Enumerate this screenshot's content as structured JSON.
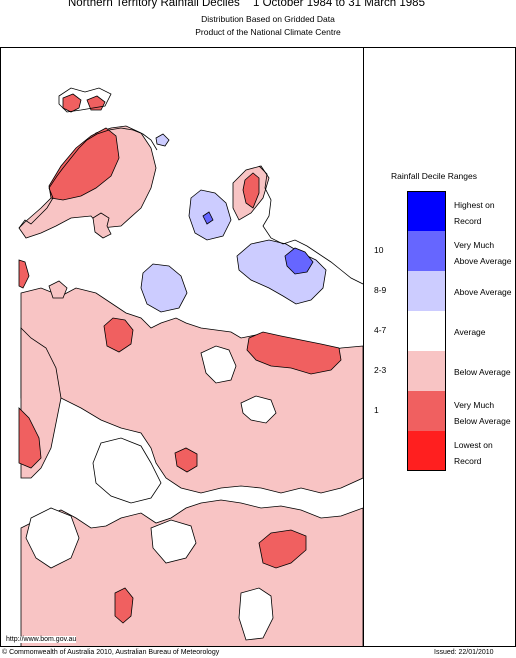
{
  "header": {
    "title": "Northern Territory Rainfall Deciles",
    "period": "1 October 1984 to 31 March 1985",
    "subtitle1": "Distribution Based on Gridded Data",
    "subtitle2": "Product of the National Climate Centre"
  },
  "legend": {
    "title": "Rainfall Decile Ranges",
    "items": [
      {
        "code": "",
        "label_line1": "Highest on",
        "label_line2": "Record",
        "color": "#0000ff"
      },
      {
        "code": "10",
        "label_line1": "Very Much",
        "label_line2": "Above Average",
        "color": "#6666ff"
      },
      {
        "code": "8-9",
        "label_line1": "Above Average",
        "label_line2": "",
        "color": "#ccccff"
      },
      {
        "code": "4-7",
        "label_line1": "Average",
        "label_line2": "",
        "color": "#ffffff"
      },
      {
        "code": "2-3",
        "label_line1": "Below Average",
        "label_line2": "",
        "color": "#f8c4c4"
      },
      {
        "code": "1",
        "label_line1": "Very Much",
        "label_line2": "Below Average",
        "color": "#f06060"
      },
      {
        "code": "",
        "label_line1": "Lowest on",
        "label_line2": "Record",
        "color": "#ff1f1f"
      }
    ]
  },
  "colors": {
    "below_average": "#f8c4c4",
    "very_much_below": "#f06060",
    "above_average": "#ccccff",
    "very_much_above": "#6666ff",
    "outline": "#000000"
  },
  "footer": {
    "url": "http://www.bom.gov.au",
    "copyright": "© Commonwealth of Australia 2010, Australian Bureau of Meteorology",
    "issued": "Issued: 22/01/2010"
  }
}
